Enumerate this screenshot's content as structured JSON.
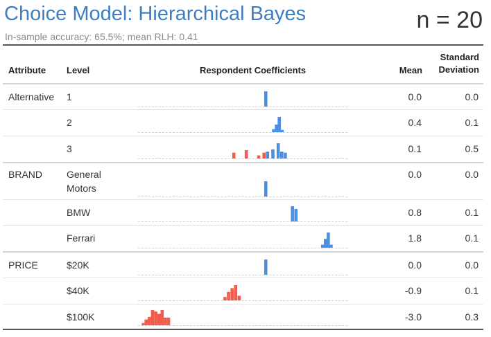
{
  "header": {
    "title": "Choice Model: Hierarchical Bayes",
    "subtitle": "In-sample accuracy: 65.5%; mean RLH: 0.41",
    "n_label": "n = 20"
  },
  "columns": {
    "attribute": "Attribute",
    "level": "Level",
    "coefficients": "Respondent Coefficients",
    "mean": "Mean",
    "sd_line1": "Standard",
    "sd_line2": "Deviation"
  },
  "colors": {
    "positive": "#4a8fe0",
    "negative": "#f25c4a"
  },
  "chart_data": {
    "type": "table",
    "title": "Choice Model: Hierarchical Bayes",
    "x_range": [
      -3.6,
      2.3
    ],
    "rows": [
      {
        "attribute": "Alternative",
        "level": "1",
        "mean": "0.0",
        "sd": "0.0",
        "histogram": [
          {
            "x": 0.0,
            "h": 1.0
          }
        ]
      },
      {
        "attribute": "",
        "level": "2",
        "mean": "0.4",
        "sd": "0.1",
        "histogram": [
          {
            "x": 0.22,
            "h": 0.2
          },
          {
            "x": 0.3,
            "h": 0.5
          },
          {
            "x": 0.38,
            "h": 1.0
          },
          {
            "x": 0.46,
            "h": 0.15
          }
        ]
      },
      {
        "attribute": "",
        "level": "3",
        "mean": "0.1",
        "sd": "0.5",
        "histogram": [
          {
            "x": -0.9,
            "h": 0.38
          },
          {
            "x": -0.55,
            "h": 0.55
          },
          {
            "x": -0.2,
            "h": 0.2
          },
          {
            "x": -0.05,
            "h": 0.38
          },
          {
            "x": 0.05,
            "h": 0.45
          },
          {
            "x": 0.2,
            "h": 0.6
          },
          {
            "x": 0.35,
            "h": 1.0
          },
          {
            "x": 0.45,
            "h": 0.45
          },
          {
            "x": 0.55,
            "h": 0.38
          }
        ]
      },
      {
        "attribute": "BRAND",
        "level": "General Motors",
        "mean": "0.0",
        "sd": "0.0",
        "histogram": [
          {
            "x": 0.0,
            "h": 1.0
          }
        ]
      },
      {
        "attribute": "",
        "level": "BMW",
        "mean": "0.8",
        "sd": "0.1",
        "histogram": [
          {
            "x": 0.75,
            "h": 1.0
          },
          {
            "x": 0.85,
            "h": 0.82
          }
        ]
      },
      {
        "attribute": "",
        "level": "Ferrari",
        "mean": "1.8",
        "sd": "0.1",
        "histogram": [
          {
            "x": 1.6,
            "h": 0.2
          },
          {
            "x": 1.68,
            "h": 0.58
          },
          {
            "x": 1.76,
            "h": 1.0
          },
          {
            "x": 1.84,
            "h": 0.2
          }
        ]
      },
      {
        "attribute": "PRICE",
        "level": "$20K",
        "mean": "0.0",
        "sd": "0.0",
        "histogram": [
          {
            "x": 0.0,
            "h": 1.0
          }
        ]
      },
      {
        "attribute": "",
        "level": "$40K",
        "mean": "-0.9",
        "sd": "0.1",
        "histogram": [
          {
            "x": -1.15,
            "h": 0.22
          },
          {
            "x": -1.05,
            "h": 0.55
          },
          {
            "x": -0.95,
            "h": 0.8
          },
          {
            "x": -0.85,
            "h": 1.0
          },
          {
            "x": -0.75,
            "h": 0.3
          }
        ]
      },
      {
        "attribute": "",
        "level": "$100K",
        "mean": "-3.0",
        "sd": "0.3",
        "histogram": [
          {
            "x": -3.45,
            "h": 0.15
          },
          {
            "x": -3.37,
            "h": 0.38
          },
          {
            "x": -3.28,
            "h": 0.55
          },
          {
            "x": -3.19,
            "h": 1.0
          },
          {
            "x": -3.1,
            "h": 0.9
          },
          {
            "x": -3.01,
            "h": 0.75
          },
          {
            "x": -2.92,
            "h": 1.0
          },
          {
            "x": -2.83,
            "h": 0.5
          },
          {
            "x": -2.74,
            "h": 0.5
          }
        ]
      }
    ]
  }
}
